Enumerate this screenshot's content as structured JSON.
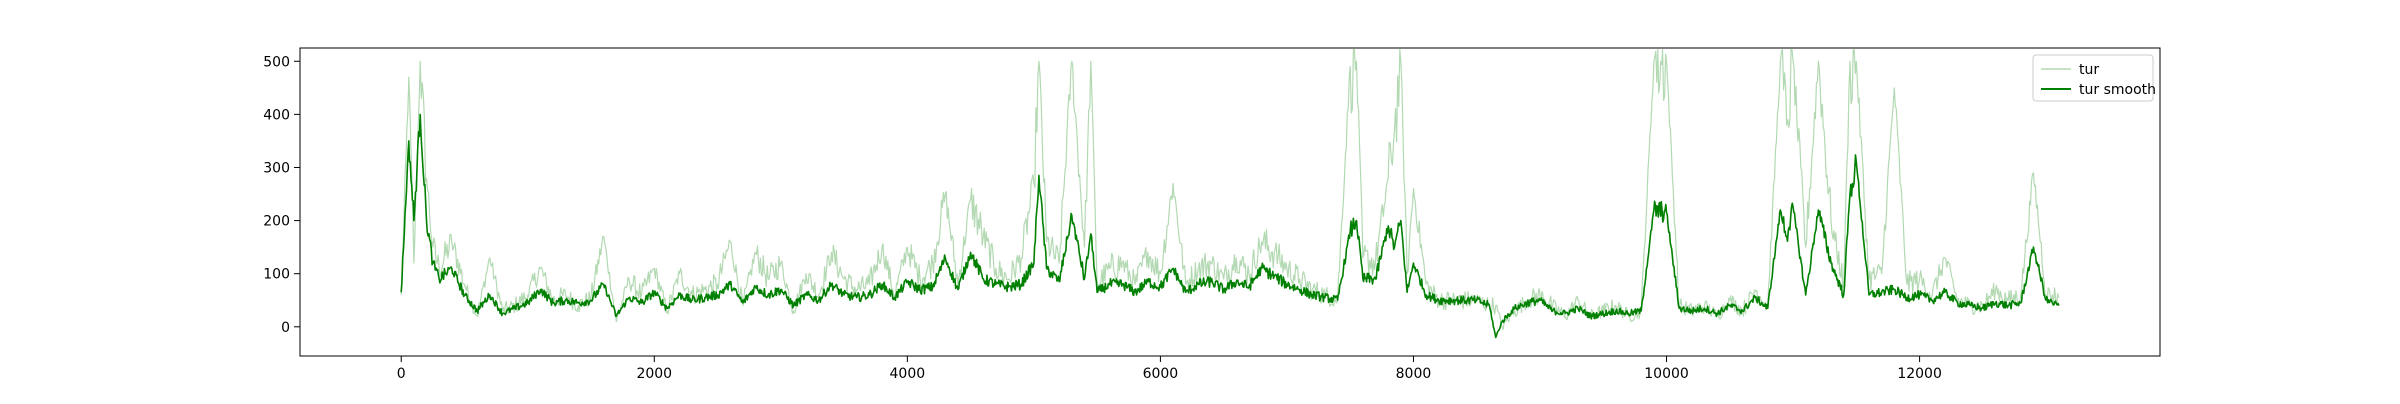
{
  "chart_data": {
    "type": "line",
    "title": "",
    "xlabel": "",
    "ylabel": "",
    "xlim": [
      -800,
      13900
    ],
    "ylim": [
      -55,
      525
    ],
    "xticks": [
      0,
      2000,
      4000,
      6000,
      8000,
      10000,
      12000
    ],
    "xtick_labels": [
      "0",
      "2000",
      "4000",
      "6000",
      "8000",
      "10000",
      "12000"
    ],
    "yticks": [
      0,
      100,
      200,
      300,
      400,
      500
    ],
    "ytick_labels": [
      "0",
      "100",
      "200",
      "300",
      "400",
      "500"
    ],
    "grid": false,
    "legend_position": "top-right",
    "series": [
      {
        "name": "tur",
        "color": "#008000",
        "opacity": 0.3,
        "style": "raw",
        "x": [
          0,
          60,
          100,
          150,
          200,
          250,
          300,
          400,
          500,
          600,
          700,
          800,
          900,
          1000,
          1100,
          1200,
          1300,
          1400,
          1500,
          1600,
          1700,
          1800,
          1900,
          2000,
          2100,
          2200,
          2300,
          2400,
          2500,
          2600,
          2700,
          2800,
          2900,
          3000,
          3100,
          3200,
          3300,
          3400,
          3500,
          3600,
          3700,
          3800,
          3900,
          4000,
          4100,
          4200,
          4300,
          4400,
          4500,
          4600,
          4700,
          4800,
          4900,
          5000,
          5040,
          5100,
          5200,
          5300,
          5400,
          5450,
          5500,
          5600,
          5700,
          5800,
          5900,
          6000,
          6100,
          6200,
          6300,
          6400,
          6500,
          6600,
          6700,
          6800,
          6900,
          7000,
          7100,
          7200,
          7300,
          7400,
          7500,
          7550,
          7600,
          7700,
          7800,
          7850,
          7900,
          7950,
          8000,
          8100,
          8200,
          8300,
          8400,
          8500,
          8600,
          8650,
          8700,
          8800,
          8900,
          9000,
          9100,
          9200,
          9300,
          9400,
          9500,
          9600,
          9700,
          9800,
          9900,
          10000,
          10100,
          10200,
          10300,
          10400,
          10500,
          10600,
          10700,
          10800,
          10900,
          10950,
          11000,
          11100,
          11200,
          11300,
          11400,
          11450,
          11500,
          11600,
          11700,
          11800,
          11900,
          12000,
          12100,
          12200,
          12300,
          12400,
          12500,
          12600,
          12700,
          12800,
          12900,
          13000,
          13050,
          13100
        ],
        "y": [
          60,
          470,
          120,
          500,
          280,
          150,
          110,
          160,
          80,
          20,
          130,
          30,
          40,
          60,
          110,
          50,
          60,
          40,
          55,
          170,
          10,
          90,
          60,
          110,
          30,
          100,
          60,
          70,
          80,
          160,
          40,
          140,
          90,
          120,
          30,
          100,
          60,
          140,
          90,
          70,
          80,
          150,
          60,
          150,
          90,
          120,
          250,
          80,
          240,
          170,
          110,
          90,
          130,
          270,
          500,
          160,
          120,
          500,
          150,
          500,
          80,
          110,
          120,
          80,
          140,
          100,
          270,
          80,
          110,
          120,
          90,
          130,
          100,
          160,
          140,
          110,
          90,
          70,
          60,
          50,
          490,
          500,
          130,
          120,
          280,
          370,
          500,
          100,
          260,
          80,
          50,
          50,
          50,
          50,
          40,
          40,
          0,
          30,
          50,
          60,
          40,
          20,
          50,
          20,
          30,
          40,
          20,
          30,
          500,
          500,
          40,
          30,
          40,
          20,
          50,
          30,
          70,
          40,
          500,
          380,
          500,
          150,
          500,
          200,
          80,
          500,
          500,
          90,
          100,
          450,
          80,
          90,
          60,
          130,
          50,
          40,
          40,
          70,
          50,
          60,
          290,
          60,
          60,
          55
        ]
      },
      {
        "name": "tur smooth",
        "color": "#008000",
        "opacity": 1,
        "style": "smooth",
        "x": [
          0,
          60,
          100,
          150,
          200,
          250,
          300,
          400,
          500,
          600,
          700,
          800,
          900,
          1000,
          1100,
          1200,
          1300,
          1400,
          1500,
          1600,
          1700,
          1800,
          1900,
          2000,
          2100,
          2200,
          2300,
          2400,
          2500,
          2600,
          2700,
          2800,
          2900,
          3000,
          3100,
          3200,
          3300,
          3400,
          3500,
          3600,
          3700,
          3800,
          3900,
          4000,
          4100,
          4200,
          4300,
          4400,
          4500,
          4600,
          4700,
          4800,
          4900,
          5000,
          5040,
          5100,
          5200,
          5300,
          5400,
          5450,
          5500,
          5600,
          5700,
          5800,
          5900,
          6000,
          6100,
          6200,
          6300,
          6400,
          6500,
          6600,
          6700,
          6800,
          6900,
          7000,
          7100,
          7200,
          7300,
          7400,
          7500,
          7550,
          7600,
          7700,
          7800,
          7850,
          7900,
          7950,
          8000,
          8100,
          8200,
          8300,
          8400,
          8500,
          8600,
          8650,
          8700,
          8800,
          8900,
          9000,
          9100,
          9200,
          9300,
          9400,
          9500,
          9600,
          9700,
          9800,
          9900,
          10000,
          10100,
          10200,
          10300,
          10400,
          10500,
          10600,
          10700,
          10800,
          10900,
          10950,
          11000,
          11100,
          11200,
          11300,
          11400,
          11450,
          11500,
          11600,
          11700,
          11800,
          11900,
          12000,
          12100,
          12200,
          12300,
          12400,
          12500,
          12600,
          12700,
          12800,
          12900,
          13000,
          13050,
          13100
        ],
        "y": [
          65,
          350,
          200,
          400,
          200,
          120,
          90,
          110,
          60,
          30,
          60,
          25,
          35,
          45,
          70,
          45,
          50,
          45,
          50,
          80,
          20,
          55,
          45,
          65,
          35,
          60,
          50,
          55,
          60,
          80,
          45,
          75,
          60,
          70,
          40,
          60,
          50,
          80,
          60,
          55,
          60,
          80,
          55,
          85,
          70,
          75,
          130,
          70,
          140,
          90,
          80,
          75,
          80,
          120,
          285,
          110,
          85,
          210,
          90,
          175,
          65,
          80,
          80,
          65,
          85,
          75,
          110,
          65,
          80,
          85,
          70,
          85,
          75,
          110,
          95,
          80,
          70,
          60,
          55,
          50,
          180,
          200,
          90,
          90,
          190,
          150,
          200,
          65,
          120,
          60,
          50,
          50,
          50,
          50,
          40,
          -20,
          10,
          35,
          45,
          50,
          30,
          25,
          35,
          20,
          25,
          30,
          25,
          30,
          220,
          215,
          35,
          30,
          35,
          25,
          40,
          30,
          55,
          35,
          220,
          170,
          225,
          60,
          220,
          120,
          60,
          250,
          310,
          60,
          65,
          70,
          55,
          60,
          50,
          65,
          45,
          40,
          35,
          45,
          40,
          45,
          150,
          50,
          45,
          40
        ]
      }
    ]
  }
}
